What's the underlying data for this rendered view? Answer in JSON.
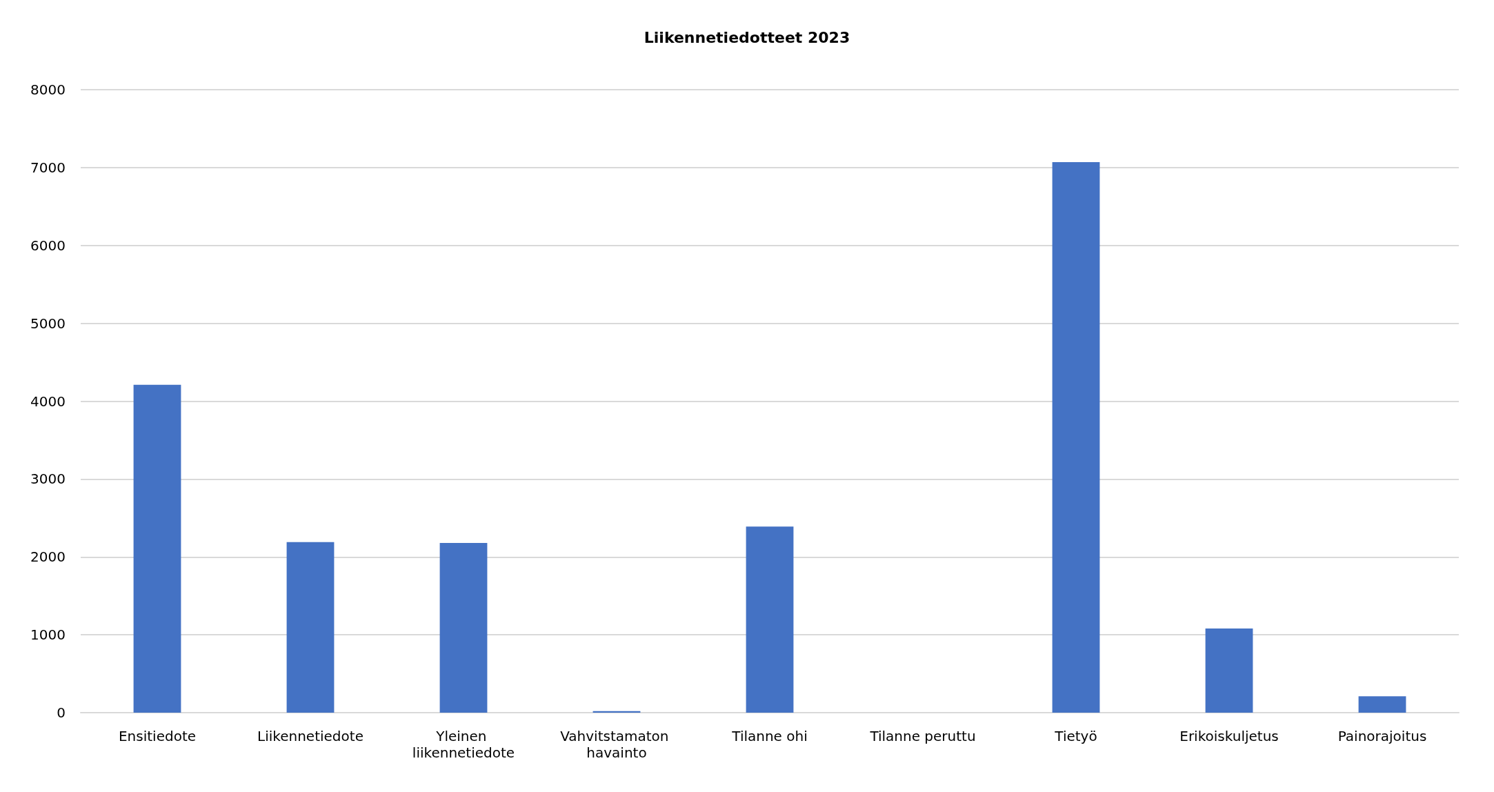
{
  "chart_data": {
    "type": "bar",
    "title": "Liikennetiedotteet 2023",
    "categories": [
      "Ensitiedote",
      "Liikennetiedote",
      "Yleinen liikennetiedote",
      "Vahvitstamaton havainto",
      "Tilanne ohi",
      "Tilanne peruttu",
      "Tietyö",
      "Erikoiskuljetus",
      "Painorajoitus"
    ],
    "values": [
      4210,
      2190,
      2180,
      20,
      2390,
      0,
      7070,
      1080,
      210
    ],
    "color": "#4472c4",
    "ylim": [
      0,
      8000
    ],
    "yticks": [
      0,
      1000,
      2000,
      3000,
      4000,
      5000,
      6000,
      7000,
      8000
    ],
    "grid": "y"
  }
}
